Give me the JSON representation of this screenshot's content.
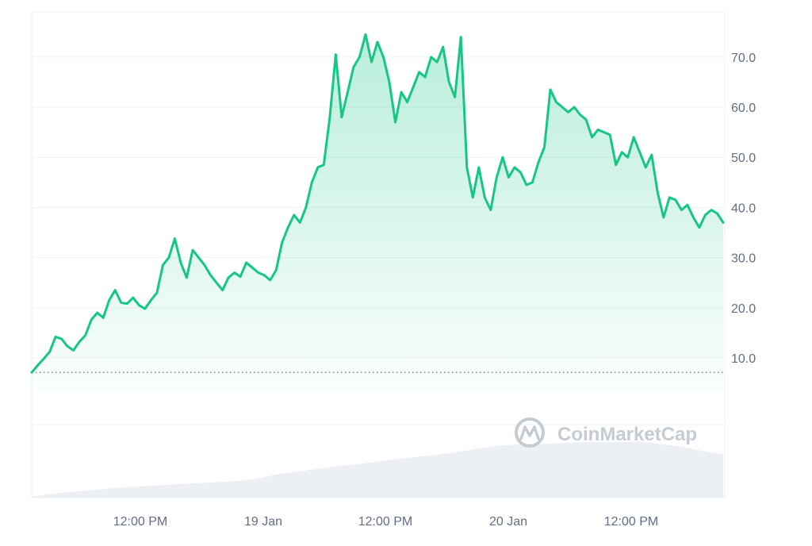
{
  "watermark": {
    "text": "CoinMarketCap",
    "icon": "coinmarketcap-logo-icon",
    "color": "#c5cbd3"
  },
  "colors": {
    "line": "#16c784",
    "area_top": "#16c784",
    "grid": "#eff2f5",
    "axis_text": "#616e85",
    "volume": "#eceff3",
    "baseline": "#616e85"
  },
  "chart_data": {
    "type": "line",
    "title": "",
    "xlabel": "",
    "ylabel": "",
    "x_tick_labels": [
      "12:00 PM",
      "19 Jan",
      "12:00 PM",
      "20 Jan",
      "12:00 PM"
    ],
    "y_tick_labels": [
      "10.0",
      "20.0",
      "30.0",
      "40.0",
      "50.0",
      "60.0",
      "70.0"
    ],
    "y_ticks": [
      10,
      20,
      30,
      40,
      50,
      60,
      70
    ],
    "ylim": [
      3.5,
      79
    ],
    "reference_line": 7.1,
    "grid": true,
    "legend": "none",
    "series": [
      {
        "values": [
          7.1,
          8.5,
          9.8,
          11.2,
          14.2,
          13.8,
          12.3,
          11.5,
          13.2,
          14.5,
          17.6,
          19.0,
          18.0,
          21.5,
          23.5,
          21.0,
          20.8,
          22.0,
          20.5,
          19.8,
          21.5,
          23.0,
          28.5,
          30.0,
          33.8,
          29.0,
          26.0,
          31.5,
          30.0,
          28.5,
          26.5,
          25.0,
          23.5,
          26.0,
          27.0,
          26.2,
          29.0,
          28.0,
          27.0,
          26.5,
          25.5,
          27.5,
          33.0,
          36.0,
          38.5,
          37.0,
          40.0,
          45.0,
          48.0,
          48.5,
          58.0,
          70.5,
          58.0,
          63.0,
          68.0,
          70.0,
          74.5,
          69.0,
          73.0,
          70.0,
          65.0,
          57.0,
          63.0,
          61.0,
          64.0,
          67.0,
          66.0,
          70.0,
          69.0,
          72.0,
          65.0,
          62.0,
          74.0,
          48.0,
          42.0,
          48.0,
          42.0,
          39.5,
          46.0,
          50.0,
          46.0,
          48.0,
          47.0,
          44.5,
          45.0,
          49.0,
          52.0,
          63.5,
          61.0,
          60.0,
          59.0,
          60.0,
          58.5,
          57.5,
          54.0,
          55.5,
          55.0,
          54.5,
          48.5,
          51.0,
          50.0,
          54.0,
          51.0,
          48.0,
          50.5,
          43.0,
          38.0,
          42.0,
          41.5,
          39.5,
          40.5,
          38.0,
          36.0,
          38.5,
          39.5,
          38.8,
          37.0
        ]
      }
    ],
    "volume": [
      0.3,
      0.9,
      1.4,
      1.8,
      2.3,
      2.6,
      2.9,
      3.2,
      3.5,
      3.7,
      4.0,
      4.5,
      5.6,
      6.3,
      6.9,
      7.6,
      8.1,
      8.7,
      9.4,
      9.9,
      10.4,
      11.1,
      11.9,
      12.6,
      12.9,
      13.0,
      13.2,
      13.4,
      13.5,
      13.5,
      13.6,
      12.9,
      12.3,
      11.3,
      10.5
    ]
  }
}
